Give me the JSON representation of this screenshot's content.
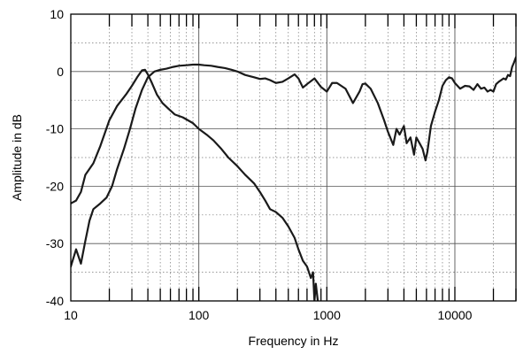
{
  "chart_data": {
    "type": "line",
    "title": "",
    "xlabel": "Frequency in Hz",
    "ylabel": "Amplitude in dB",
    "xscale": "log",
    "xlim": [
      10,
      30000
    ],
    "ylim": [
      -40,
      10
    ],
    "grid": true,
    "grid_style": "dotted",
    "legend": "none",
    "x_tick_labels": [
      "10",
      "100",
      "1000",
      "10000"
    ],
    "x_tick_values": [
      10,
      100,
      1000,
      10000
    ],
    "y_tick_labels": [
      "10",
      "0",
      "-10",
      "-20",
      "-30",
      "-40"
    ],
    "y_tick_values": [
      10,
      0,
      -10,
      -20,
      -30,
      -40
    ],
    "line_color": "#1a1a1a",
    "series": [
      {
        "x": [
          10,
          11,
          12,
          13,
          15,
          17,
          20,
          23,
          27,
          30,
          33,
          36,
          38,
          40,
          43,
          47,
          52,
          58,
          65,
          75,
          90,
          100,
          115,
          130,
          150,
          170,
          200,
          230,
          270,
          300,
          330,
          360,
          400,
          450,
          500,
          560,
          600,
          650,
          700,
          750,
          780,
          800,
          820,
          850
        ],
        "y": [
          -23,
          -22.5,
          -21,
          -18,
          -16,
          -13,
          -8.5,
          -6,
          -4,
          -2.5,
          -1,
          0.2,
          0.3,
          -0.5,
          -2,
          -4,
          -5.5,
          -6.5,
          -7.5,
          -8,
          -9,
          -10,
          -11,
          -12,
          -13.5,
          -15,
          -16.5,
          -18,
          -19.5,
          -21,
          -22.5,
          -24,
          -24.5,
          -25.5,
          -27,
          -29,
          -31,
          -33,
          -34,
          -36,
          -35,
          -40,
          -37,
          -40
        ]
      },
      {
        "x": [
          10,
          11,
          12,
          13,
          14,
          15,
          17,
          19,
          21,
          23,
          26,
          29,
          32,
          36,
          40,
          45,
          50,
          56,
          63,
          70,
          80,
          90,
          100,
          110,
          125,
          140,
          160,
          180,
          200,
          230,
          270,
          300,
          330,
          360,
          400,
          450,
          500,
          560,
          600,
          650,
          700,
          800,
          900,
          1000,
          1100,
          1200,
          1400,
          1600,
          1800,
          1900,
          2000,
          2200,
          2500,
          2800,
          3000,
          3300,
          3500,
          3700,
          4000,
          4200,
          4500,
          4800,
          5000,
          5300,
          5600,
          5900,
          6100,
          6500,
          7000,
          7500,
          8000,
          8500,
          9000,
          9500,
          10000,
          11000,
          12000,
          13000,
          14000,
          15000,
          16000,
          17000,
          18000,
          19000,
          20000,
          21000,
          22000,
          23000,
          24000,
          25000,
          26000,
          27000,
          28000,
          29000,
          30000
        ],
        "y": [
          -34,
          -31,
          -33.5,
          -29.5,
          -26,
          -24,
          -23,
          -22,
          -20,
          -17,
          -13.5,
          -10,
          -6.5,
          -3.2,
          -1,
          0,
          0.3,
          0.5,
          0.8,
          1,
          1.1,
          1.2,
          1.2,
          1.1,
          1,
          0.8,
          0.6,
          0.3,
          0,
          -0.6,
          -1,
          -1.3,
          -1.2,
          -1.5,
          -2,
          -1.8,
          -1.2,
          -0.5,
          -1.2,
          -2.8,
          -2.2,
          -1.2,
          -2.7,
          -3.5,
          -2,
          -2,
          -3,
          -5.5,
          -3.5,
          -2.2,
          -2.1,
          -3,
          -5.5,
          -8.5,
          -10.5,
          -12.8,
          -10,
          -11,
          -9.5,
          -12.5,
          -11.5,
          -14.5,
          -11.5,
          -12.5,
          -13.5,
          -15.5,
          -14,
          -9.5,
          -7,
          -5,
          -2.5,
          -1.5,
          -1,
          -1.2,
          -2,
          -3,
          -2.5,
          -2.6,
          -3.2,
          -2.2,
          -3,
          -2.8,
          -3.5,
          -3.2,
          -3.5,
          -2.2,
          -1.8,
          -1.5,
          -1.2,
          -1.4,
          -0.6,
          -0.8,
          0.8,
          1.6,
          2.5
        ]
      }
    ]
  }
}
